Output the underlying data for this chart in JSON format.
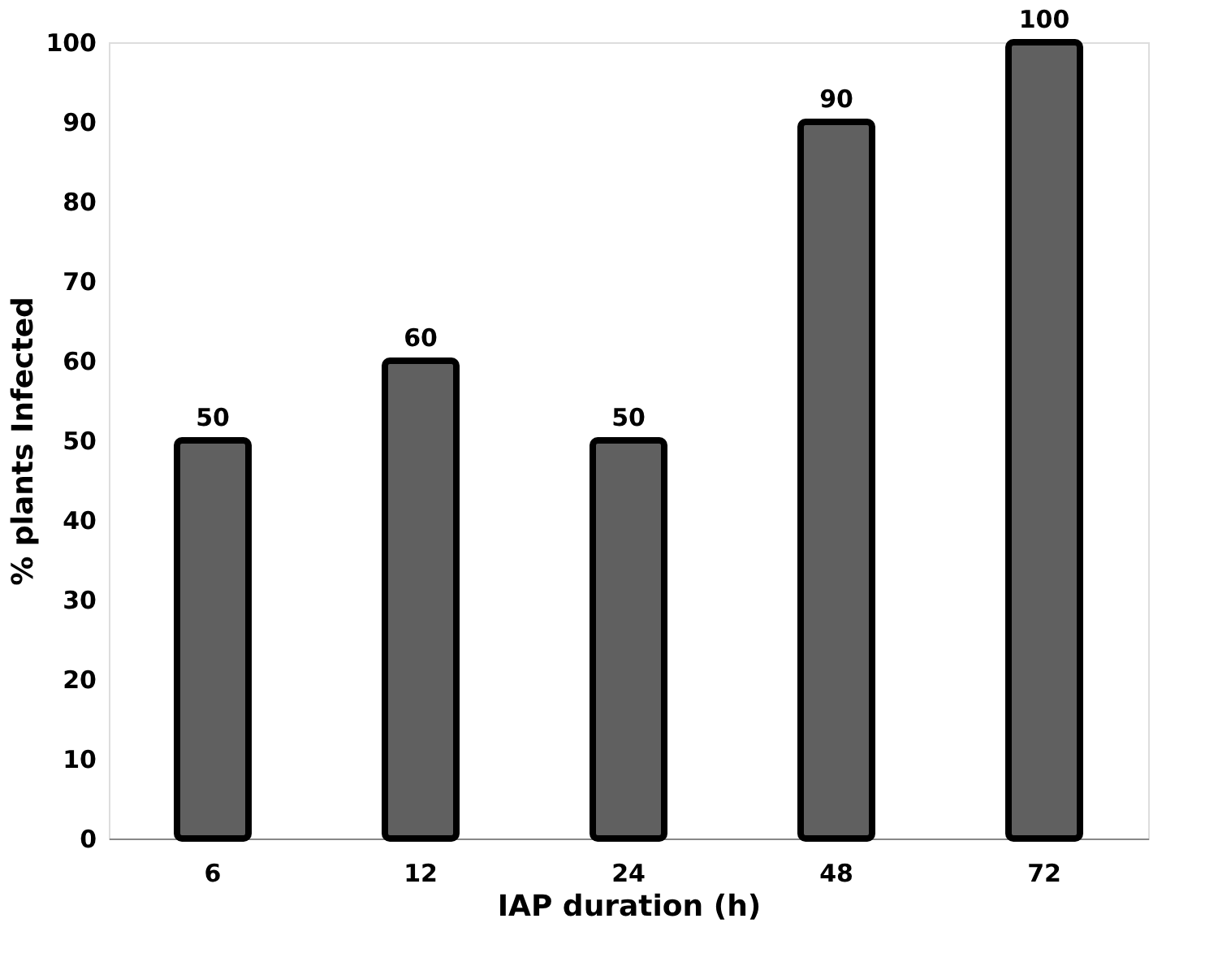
{
  "chart_data": {
    "type": "bar",
    "xlabel": "IAP duration (h)",
    "ylabel": "% plants Infected",
    "categories": [
      "6",
      "12",
      "24",
      "48",
      "72"
    ],
    "values": [
      50,
      60,
      50,
      90,
      100
    ],
    "color": "#606060",
    "ylim": [
      0,
      100
    ],
    "yticks": [
      0,
      10,
      20,
      30,
      40,
      50,
      60,
      70,
      80,
      90,
      100
    ],
    "grid": false,
    "data_labels": true
  }
}
